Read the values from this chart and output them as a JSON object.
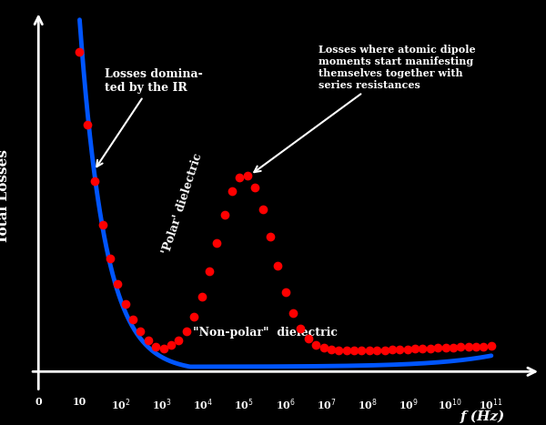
{
  "background_color": "#000000",
  "text_color": "#000000",
  "curve_color_blue": "#0055ff",
  "curve_color_red": "#ff0000",
  "xlabel": "f (Hz)",
  "ylabel": "Total Losses",
  "x_tick_labels": [
    "0",
    "10",
    "10$^2$",
    "10$^3$",
    "10$^4$",
    "10$^5$",
    "10$^6$",
    "10$^7$",
    "10$^8$",
    "10$^9$",
    "10$^{10}$",
    "10$^{11}$"
  ],
  "annotation_IR": "Losses domina-\nted by the IR",
  "annotation_polar": "Losses where atomic dipole\nmoments start manifesting\nthemselves together with\nseries resistances",
  "label_polar": "'Polar' dielectric",
  "label_nonpolar": "\"Non-polar\"  dielectric"
}
